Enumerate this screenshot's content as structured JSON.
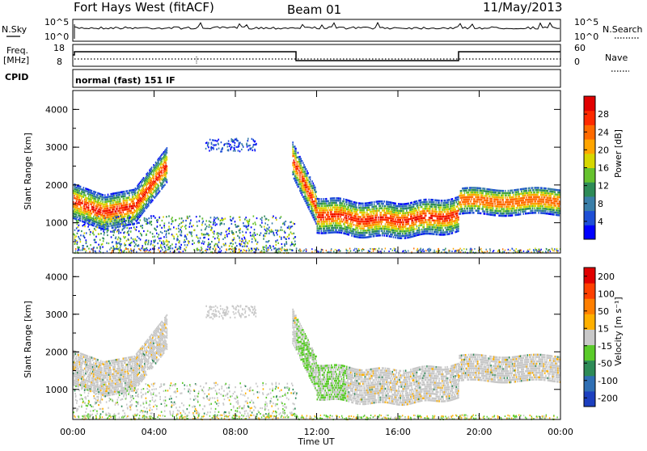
{
  "header": {
    "station": "Fort Hays West (fitACF)",
    "beam": "Beam 01",
    "date": "11/May/2013"
  },
  "status_panels": {
    "nsky_label": "N.Sky",
    "nsky_ticks": [
      "10^5",
      "10^0"
    ],
    "nsearch_label": "N.Search",
    "nsearch_ticks": [
      "10^5",
      "10^0"
    ],
    "freq_label_1": "Freq.",
    "freq_label_2": "[MHz]",
    "freq_ticks": [
      "18",
      "8"
    ],
    "nave_label": "Nave",
    "nave_ticks": [
      "60",
      "0"
    ],
    "cpid_label": "CPID",
    "mode_text": "normal (fast) 151 IF"
  },
  "chart_data": [
    {
      "type": "heatmap",
      "name": "power",
      "ylabel": "Slant Range [km]",
      "xlabel": "Time UT",
      "ylim": [
        200,
        4500
      ],
      "y_ticks": [
        "1000",
        "2000",
        "3000",
        "4000"
      ],
      "x_ticks": [
        "00:00",
        "04:00",
        "08:00",
        "12:00",
        "16:00",
        "20:00",
        "00:00"
      ],
      "colorbar_label": "Power [dB]",
      "colorbar_ticks": [
        "4",
        "8",
        "12",
        "16",
        "20",
        "24",
        "28"
      ],
      "colors": [
        "#0000ff",
        "#1e4fd6",
        "#3a7ea8",
        "#2e8b57",
        "#66c22e",
        "#d7d700",
        "#ffa500",
        "#ff6a00",
        "#ff2a00",
        "#e10000"
      ],
      "description_series": [
        {
          "t_hours": [
            0,
            1.5,
            3,
            4.5
          ],
          "range_km": [
            1600,
            1300,
            1500,
            2600
          ]
        },
        {
          "t_hours": [
            12,
            14,
            16,
            18,
            19
          ],
          "range_km": [
            1300,
            1100,
            1100,
            1200,
            1100
          ]
        },
        {
          "t_hours": [
            19,
            21,
            24
          ],
          "range_km": [
            1600,
            1700,
            1600
          ]
        }
      ]
    },
    {
      "type": "heatmap",
      "name": "velocity",
      "ylabel": "Slant Range [km]",
      "xlabel": "Time UT",
      "ylim": [
        200,
        4500
      ],
      "y_ticks": [
        "1000",
        "2000",
        "3000",
        "4000"
      ],
      "x_ticks": [
        "00:00",
        "04:00",
        "08:00",
        "12:00",
        "16:00",
        "20:00",
        "00:00"
      ],
      "colorbar_label": "Velocity [m s⁻¹]",
      "colorbar_ticks": [
        "200",
        "100",
        "50",
        "15",
        "-15",
        "-50",
        "-100",
        "-200"
      ],
      "colors": [
        "#1c3fbf",
        "#2f6fb4",
        "#2e8b57",
        "#5acb2a",
        "#c8c8c8",
        "#ffb000",
        "#ff7f00",
        "#ff4000",
        "#e00000"
      ]
    }
  ]
}
